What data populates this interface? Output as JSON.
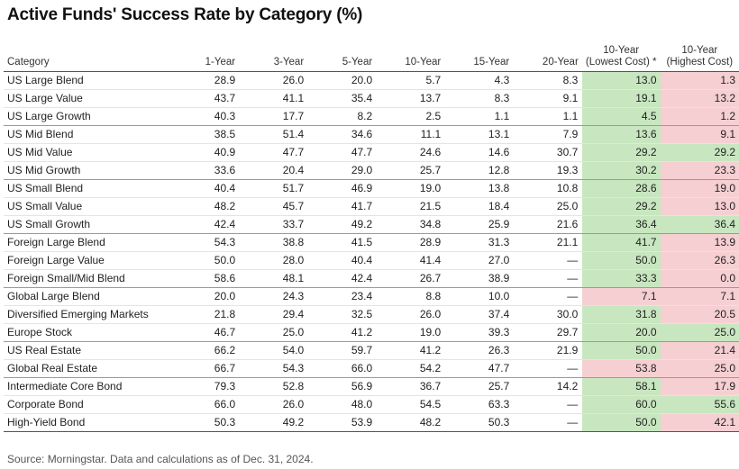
{
  "title": "Active Funds' Success Rate by Category (%)",
  "source": "Source: Morningstar. Data and calculations as of Dec. 31, 2024.",
  "colors": {
    "green": "#c8e6c0",
    "red": "#f6cfd2"
  },
  "chart_data": {
    "type": "table",
    "columns": [
      "Category",
      "1-Year",
      "3-Year",
      "5-Year",
      "10-Year",
      "15-Year",
      "20-Year",
      "10-Year (Lowest Cost) *",
      "10-Year (Highest Cost)"
    ],
    "header_lines": [
      [
        "Category"
      ],
      [
        "1-Year"
      ],
      [
        "3-Year"
      ],
      [
        "5-Year"
      ],
      [
        "10-Year"
      ],
      [
        "15-Year"
      ],
      [
        "20-Year"
      ],
      [
        "10-Year",
        "(Lowest Cost) *"
      ],
      [
        "10-Year",
        "(Highest Cost)"
      ]
    ],
    "rows": [
      {
        "category": "US Large Blend",
        "values": [
          "28.9",
          "26.0",
          "20.0",
          "5.7",
          "4.3",
          "8.3",
          "13.0",
          "1.3"
        ],
        "low_color": "green",
        "high_color": "red"
      },
      {
        "category": "US Large Value",
        "values": [
          "43.7",
          "41.1",
          "35.4",
          "13.7",
          "8.3",
          "9.1",
          "19.1",
          "13.2"
        ],
        "low_color": "green",
        "high_color": "red"
      },
      {
        "category": "US Large Growth",
        "values": [
          "40.3",
          "17.7",
          "8.2",
          "2.5",
          "1.1",
          "1.1",
          "4.5",
          "1.2"
        ],
        "low_color": "green",
        "high_color": "red",
        "group_end": true
      },
      {
        "category": "US Mid Blend",
        "values": [
          "38.5",
          "51.4",
          "34.6",
          "11.1",
          "13.1",
          "7.9",
          "13.6",
          "9.1"
        ],
        "low_color": "green",
        "high_color": "red"
      },
      {
        "category": "US Mid Value",
        "values": [
          "40.9",
          "47.7",
          "47.7",
          "24.6",
          "14.6",
          "30.7",
          "29.2",
          "29.2"
        ],
        "low_color": "green",
        "high_color": "green"
      },
      {
        "category": "US Mid Growth",
        "values": [
          "33.6",
          "20.4",
          "29.0",
          "25.7",
          "12.8",
          "19.3",
          "30.2",
          "23.3"
        ],
        "low_color": "green",
        "high_color": "red",
        "group_end": true
      },
      {
        "category": "US Small Blend",
        "values": [
          "40.4",
          "51.7",
          "46.9",
          "19.0",
          "13.8",
          "10.8",
          "28.6",
          "19.0"
        ],
        "low_color": "green",
        "high_color": "red"
      },
      {
        "category": "US Small Value",
        "values": [
          "48.2",
          "45.7",
          "41.7",
          "21.5",
          "18.4",
          "25.0",
          "29.2",
          "13.0"
        ],
        "low_color": "green",
        "high_color": "red"
      },
      {
        "category": "US Small Growth",
        "values": [
          "42.4",
          "33.7",
          "49.2",
          "34.8",
          "25.9",
          "21.6",
          "36.4",
          "36.4"
        ],
        "low_color": "green",
        "high_color": "green",
        "group_end": true
      },
      {
        "category": "Foreign Large Blend",
        "values": [
          "54.3",
          "38.8",
          "41.5",
          "28.9",
          "31.3",
          "21.1",
          "41.7",
          "13.9"
        ],
        "low_color": "green",
        "high_color": "red"
      },
      {
        "category": "Foreign Large Value",
        "values": [
          "50.0",
          "28.0",
          "40.4",
          "41.4",
          "27.0",
          "—",
          "50.0",
          "26.3"
        ],
        "low_color": "green",
        "high_color": "red"
      },
      {
        "category": "Foreign Small/Mid Blend",
        "values": [
          "58.6",
          "48.1",
          "42.4",
          "26.7",
          "38.9",
          "—",
          "33.3",
          "0.0"
        ],
        "low_color": "green",
        "high_color": "red",
        "group_end": true
      },
      {
        "category": "Global Large Blend",
        "values": [
          "20.0",
          "24.3",
          "23.4",
          "8.8",
          "10.0",
          "—",
          "7.1",
          "7.1"
        ],
        "low_color": "red",
        "high_color": "red"
      },
      {
        "category": "Diversified Emerging Markets",
        "values": [
          "21.8",
          "29.4",
          "32.5",
          "26.0",
          "37.4",
          "30.0",
          "31.8",
          "20.5"
        ],
        "low_color": "green",
        "high_color": "red"
      },
      {
        "category": "Europe Stock",
        "values": [
          "46.7",
          "25.0",
          "41.2",
          "19.0",
          "39.3",
          "29.7",
          "20.0",
          "25.0"
        ],
        "low_color": "green",
        "high_color": "green",
        "group_end": true
      },
      {
        "category": "US Real Estate",
        "values": [
          "66.2",
          "54.0",
          "59.7",
          "41.2",
          "26.3",
          "21.9",
          "50.0",
          "21.4"
        ],
        "low_color": "green",
        "high_color": "red"
      },
      {
        "category": "Global Real Estate",
        "values": [
          "66.7",
          "54.3",
          "66.0",
          "54.2",
          "47.7",
          "—",
          "53.8",
          "25.0"
        ],
        "low_color": "red",
        "high_color": "red",
        "group_end": true
      },
      {
        "category": "Intermediate Core Bond",
        "values": [
          "79.3",
          "52.8",
          "56.9",
          "36.7",
          "25.7",
          "14.2",
          "58.1",
          "17.9"
        ],
        "low_color": "green",
        "high_color": "red"
      },
      {
        "category": "Corporate Bond",
        "values": [
          "66.0",
          "26.0",
          "48.0",
          "54.5",
          "63.3",
          "—",
          "60.0",
          "55.6"
        ],
        "low_color": "green",
        "high_color": "green"
      },
      {
        "category": "High-Yield Bond",
        "values": [
          "50.3",
          "49.2",
          "53.9",
          "48.2",
          "50.3",
          "—",
          "50.0",
          "42.1"
        ],
        "low_color": "green",
        "high_color": "red"
      }
    ]
  }
}
